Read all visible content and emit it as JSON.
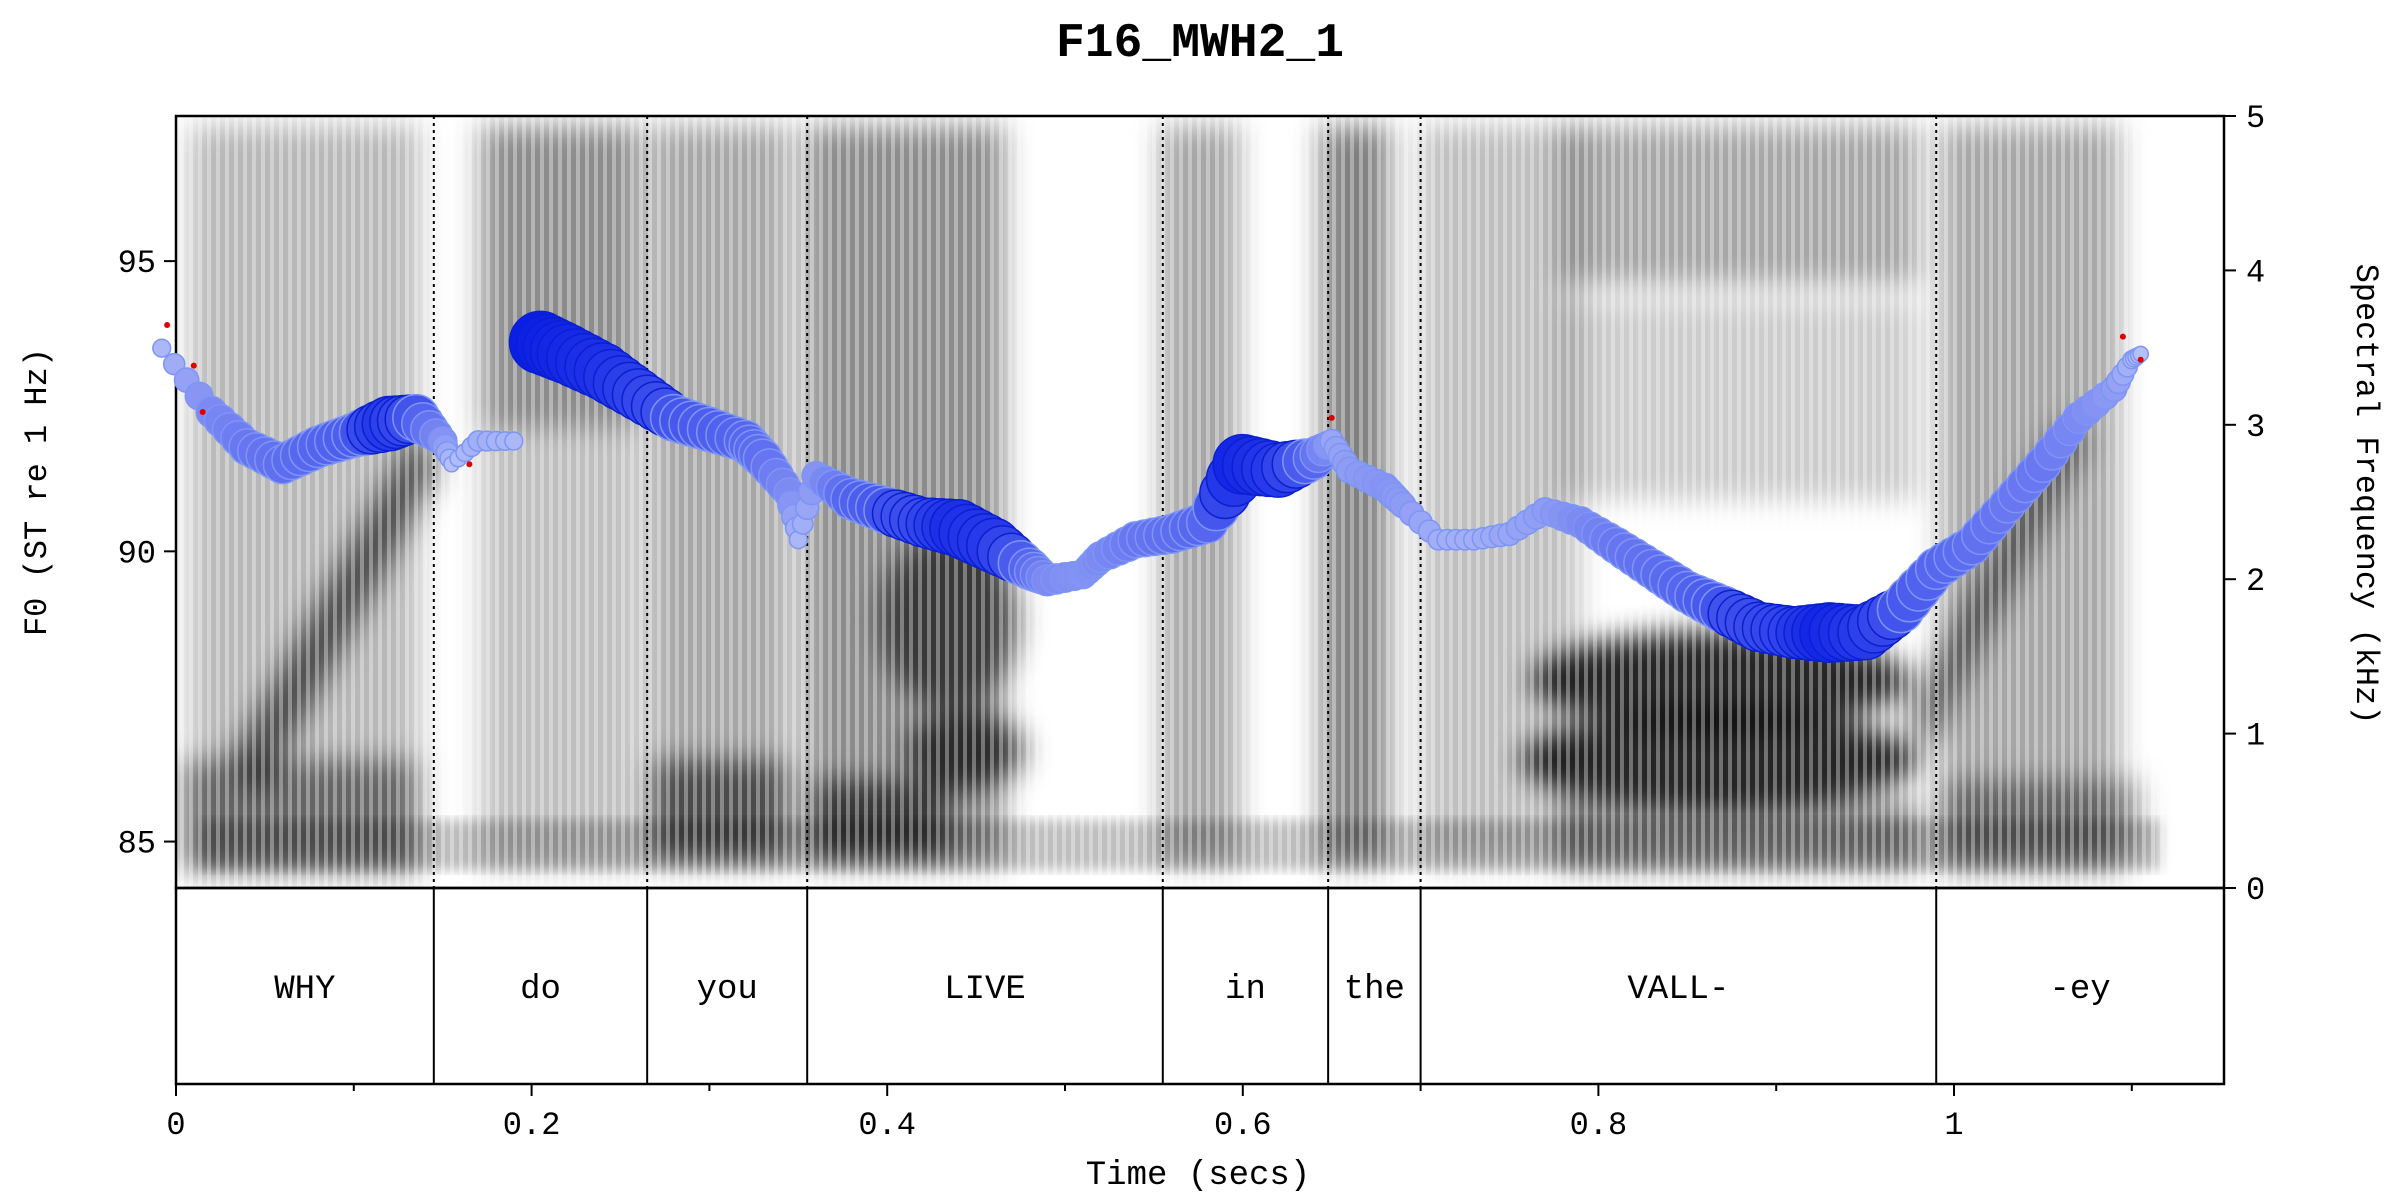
{
  "chart_data": {
    "type": "scatter",
    "title": "F16_MWH2_1",
    "xlabel": "Time (secs)",
    "ylabel_left": "F0 (ST re 1 Hz)",
    "ylabel_right": "Spectral Frequency (kHz)",
    "xlim": [
      0,
      1.16
    ],
    "ylim_left": [
      84.2,
      97.5
    ],
    "ylim_right": [
      0,
      5
    ],
    "x_ticks": [
      0,
      0.2,
      0.4,
      0.6,
      0.8,
      1
    ],
    "x_tick_labels": [
      "0",
      "0.2",
      "0.4",
      "0.6",
      "0.8",
      "1"
    ],
    "y_left_ticks": [
      85,
      90,
      95
    ],
    "y_left_tick_labels": [
      "85",
      "90",
      "95"
    ],
    "y_right_ticks": [
      0,
      1,
      2,
      3,
      4,
      5
    ],
    "y_right_tick_labels": [
      "0",
      "1",
      "2",
      "3",
      "4",
      "5"
    ],
    "grid": false,
    "background": "grayscale spectrogram",
    "colors": {
      "strong": "#0a1ee6",
      "weak": "#c8d2fa",
      "outlier": "#e00000"
    },
    "segments": [
      {
        "label": "WHY",
        "start": 0.0,
        "end": 0.145
      },
      {
        "label": "do",
        "start": 0.145,
        "end": 0.265
      },
      {
        "label": "you",
        "start": 0.265,
        "end": 0.355
      },
      {
        "label": "LIVE",
        "start": 0.355,
        "end": 0.555
      },
      {
        "label": "in",
        "start": 0.555,
        "end": 0.648
      },
      {
        "label": "the",
        "start": 0.648,
        "end": 0.7
      },
      {
        "label": "VALL-",
        "start": 0.7,
        "end": 0.99
      },
      {
        "label": "-ey",
        "start": 0.99,
        "end": 1.16
      }
    ],
    "f0_points": [
      [
        -0.008,
        93.5,
        0.15
      ],
      [
        0.02,
        92.4,
        0.4
      ],
      [
        0.04,
        91.8,
        0.5
      ],
      [
        0.06,
        91.5,
        0.55
      ],
      [
        0.08,
        91.8,
        0.6
      ],
      [
        0.1,
        92.0,
        0.65
      ],
      [
        0.12,
        92.2,
        0.85
      ],
      [
        0.135,
        92.3,
        0.7
      ],
      [
        0.15,
        91.9,
        0.35
      ],
      [
        0.155,
        91.5,
        0.1
      ],
      [
        0.17,
        91.9,
        0.2
      ],
      [
        0.19,
        91.9,
        0.15
      ],
      [
        0.205,
        93.6,
        1.0
      ],
      [
        0.22,
        93.4,
        0.95
      ],
      [
        0.24,
        93.1,
        0.9
      ],
      [
        0.26,
        92.7,
        0.8
      ],
      [
        0.28,
        92.3,
        0.7
      ],
      [
        0.3,
        92.1,
        0.65
      ],
      [
        0.32,
        91.9,
        0.6
      ],
      [
        0.33,
        91.6,
        0.55
      ],
      [
        0.345,
        91.0,
        0.4
      ],
      [
        0.35,
        90.2,
        0.15
      ],
      [
        0.36,
        91.3,
        0.35
      ],
      [
        0.38,
        90.9,
        0.6
      ],
      [
        0.4,
        90.7,
        0.7
      ],
      [
        0.42,
        90.5,
        0.75
      ],
      [
        0.44,
        90.4,
        0.9
      ],
      [
        0.46,
        90.1,
        0.85
      ],
      [
        0.48,
        89.7,
        0.6
      ],
      [
        0.49,
        89.5,
        0.4
      ],
      [
        0.51,
        89.6,
        0.35
      ],
      [
        0.52,
        89.9,
        0.4
      ],
      [
        0.54,
        90.2,
        0.5
      ],
      [
        0.56,
        90.3,
        0.55
      ],
      [
        0.58,
        90.5,
        0.6
      ],
      [
        0.6,
        91.5,
        0.95
      ],
      [
        0.62,
        91.4,
        0.85
      ],
      [
        0.64,
        91.6,
        0.6
      ],
      [
        0.65,
        91.9,
        0.25
      ],
      [
        0.66,
        91.4,
        0.3
      ],
      [
        0.68,
        91.1,
        0.35
      ],
      [
        0.69,
        90.8,
        0.3
      ],
      [
        0.71,
        90.2,
        0.2
      ],
      [
        0.73,
        90.2,
        0.2
      ],
      [
        0.75,
        90.3,
        0.25
      ],
      [
        0.77,
        90.7,
        0.3
      ],
      [
        0.79,
        90.5,
        0.4
      ],
      [
        0.81,
        90.1,
        0.5
      ],
      [
        0.83,
        89.7,
        0.55
      ],
      [
        0.85,
        89.3,
        0.6
      ],
      [
        0.87,
        89.0,
        0.7
      ],
      [
        0.89,
        88.7,
        0.75
      ],
      [
        0.91,
        88.6,
        0.8
      ],
      [
        0.93,
        88.6,
        0.95
      ],
      [
        0.95,
        88.6,
        0.85
      ],
      [
        0.97,
        89.0,
        0.7
      ],
      [
        0.99,
        89.7,
        0.6
      ],
      [
        1.01,
        90.1,
        0.55
      ],
      [
        1.03,
        90.8,
        0.5
      ],
      [
        1.05,
        91.5,
        0.5
      ],
      [
        1.07,
        92.3,
        0.4
      ],
      [
        1.09,
        92.8,
        0.3
      ],
      [
        1.1,
        93.3,
        0.15
      ],
      [
        1.105,
        93.4,
        0.1
      ]
    ],
    "outlier_points": [
      [
        -0.005,
        93.9
      ],
      [
        0.01,
        93.2
      ],
      [
        0.015,
        92.4
      ],
      [
        0.165,
        91.5
      ],
      [
        0.65,
        92.3
      ],
      [
        1.095,
        93.7
      ],
      [
        1.105,
        93.3
      ]
    ]
  }
}
